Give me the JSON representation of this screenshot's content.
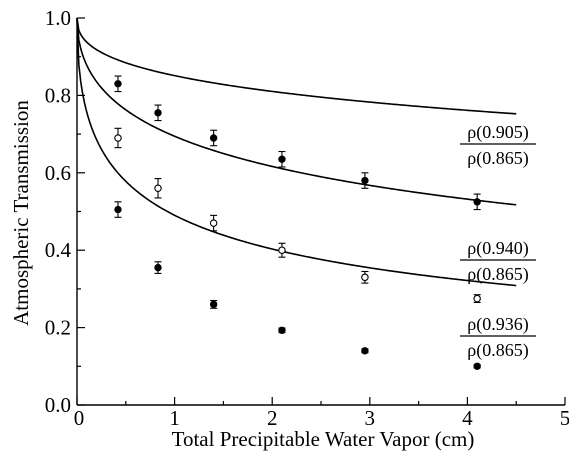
{
  "chart_data": {
    "type": "line",
    "title": "",
    "xlabel": "Total Precipitable Water Vapor (cm)",
    "ylabel": "Atmospheric Transmission",
    "xlim": [
      0,
      5
    ],
    "ylim": [
      0,
      1.0
    ],
    "x_ticks": [
      "0",
      "1",
      "2",
      "3",
      "4",
      "5"
    ],
    "y_ticks": [
      "0.0",
      "0.2",
      "0.4",
      "0.6",
      "0.8",
      "1.0"
    ],
    "grid": false,
    "legend": "none",
    "series": [
      {
        "name": "ρ(0.905)/ρ(0.865)",
        "label_top": "ρ(0.905)",
        "label_bottom": "ρ(0.865)",
        "marker": "filled-circle",
        "points": [
          {
            "x": 0.42,
            "y": 0.83,
            "err": 0.02
          },
          {
            "x": 0.83,
            "y": 0.755,
            "err": 0.02
          },
          {
            "x": 1.4,
            "y": 0.69,
            "err": 0.02
          },
          {
            "x": 2.1,
            "y": 0.635,
            "err": 0.02
          },
          {
            "x": 2.95,
            "y": 0.58,
            "err": 0.02
          },
          {
            "x": 4.1,
            "y": 0.525,
            "err": 0.02
          }
        ],
        "fit": {
          "a": 0.175,
          "b": 0.42
        }
      },
      {
        "name": "ρ(0.940)/ρ(0.865)",
        "label_top": "ρ(0.940)",
        "label_bottom": "ρ(0.865)",
        "marker": "open-circle",
        "points": [
          {
            "x": 0.42,
            "y": 0.69,
            "err": 0.025
          },
          {
            "x": 0.83,
            "y": 0.56,
            "err": 0.025
          },
          {
            "x": 1.4,
            "y": 0.47,
            "err": 0.02
          },
          {
            "x": 2.1,
            "y": 0.4,
            "err": 0.018
          },
          {
            "x": 2.95,
            "y": 0.33,
            "err": 0.015
          },
          {
            "x": 4.1,
            "y": 0.275,
            "err": 0.01
          }
        ],
        "fit": {
          "a": 0.44,
          "b": 0.5
        }
      },
      {
        "name": "ρ(0.936)/ρ(0.865)",
        "label_top": "ρ(0.936)",
        "label_bottom": "ρ(0.865)",
        "marker": "filled-circle",
        "points": [
          {
            "x": 0.42,
            "y": 0.505,
            "err": 0.02
          },
          {
            "x": 0.83,
            "y": 0.355,
            "err": 0.015
          },
          {
            "x": 1.4,
            "y": 0.26,
            "err": 0.01
          },
          {
            "x": 2.1,
            "y": 0.193,
            "err": 0.006
          },
          {
            "x": 2.95,
            "y": 0.14,
            "err": 0.005
          },
          {
            "x": 4.1,
            "y": 0.1,
            "err": 0.004
          }
        ],
        "fit": {
          "a": 1.04,
          "b": 0.51
        }
      }
    ]
  }
}
